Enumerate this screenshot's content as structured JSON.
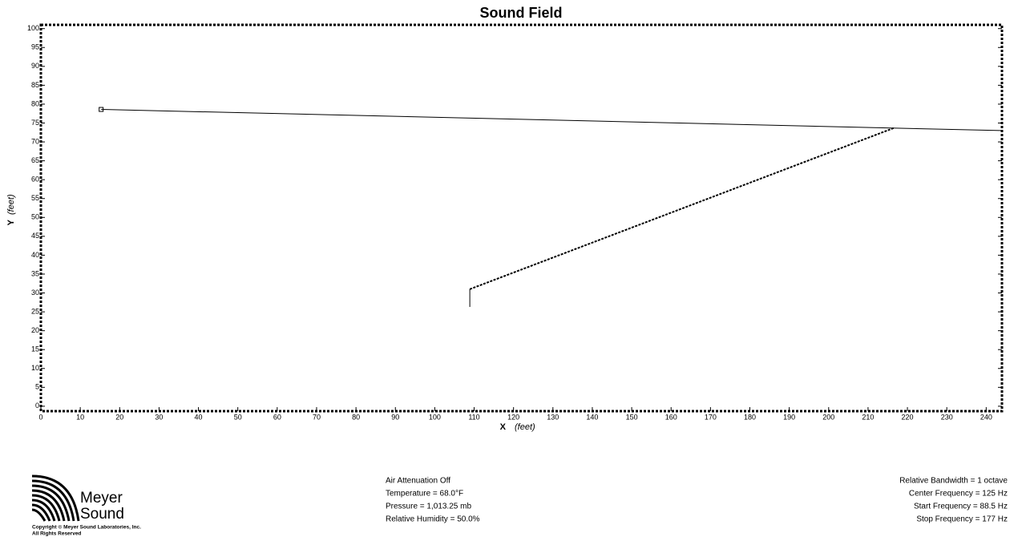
{
  "chart_data": {
    "type": "line",
    "title": "Sound Field",
    "x_label": "X",
    "x_unit": "(feet)",
    "y_label": "Y",
    "y_unit": "(feet)",
    "xlim": [
      0,
      244
    ],
    "ylim": [
      -1.3,
      101
    ],
    "xticks": [
      0,
      10,
      20,
      30,
      40,
      50,
      60,
      70,
      80,
      90,
      100,
      110,
      120,
      130,
      140,
      150,
      160,
      170,
      180,
      190,
      200,
      210,
      220,
      230,
      240
    ],
    "yticks": [
      0,
      5,
      10,
      15,
      20,
      25,
      30,
      35,
      40,
      45,
      50,
      55,
      60,
      65,
      70,
      75,
      80,
      85,
      90,
      95,
      100
    ],
    "series": [
      {
        "color": "#000000",
        "x": [
          15.3,
          243.7
        ],
        "values": [
          78.6,
          73.0
        ],
        "marker": "square"
      },
      {
        "color": "#000000",
        "x": [
          108.9,
          216.6
        ],
        "values": [
          31.0,
          73.7
        ],
        "dashed": true
      },
      {
        "color": "#000000",
        "x": [
          108.9,
          108.9
        ],
        "values": [
          31.0,
          26.3
        ]
      }
    ]
  },
  "logo": {
    "line1": "Meyer",
    "line2": "Sound",
    "copyright": "Copyright © Meyer Sound Laboratories, Inc.",
    "rights": "All Rights Reserved"
  },
  "air": [
    "Air Attenuation Off",
    "Temperature = 68.0°F",
    "Pressure = 1,013.25  mb",
    "Relative Humidity = 50.0%"
  ],
  "frequency": [
    "Relative Bandwidth = 1 octave",
    "Center Frequency = 125 Hz",
    "Start Frequency = 88.5 Hz",
    "Stop Frequency = 177 Hz"
  ]
}
